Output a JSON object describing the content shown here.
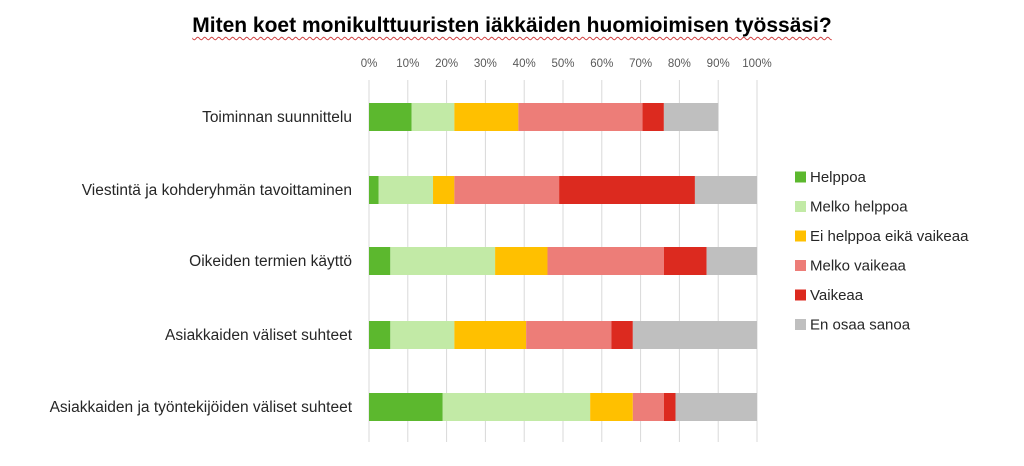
{
  "chart_data": {
    "type": "bar",
    "orientation": "horizontal",
    "stacked": "percent",
    "title": "Miten koet monikulttuuristen iäkkäiden huomioimisen työssäsi?",
    "categories": [
      "Toiminnan suunnittelu",
      "Viestintä ja kohderyhmän tavoittaminen",
      "Oikeiden termien käyttö",
      "Asiakkaiden väliset suhteet",
      "Asiakkaiden ja työntekijöiden väliset suhteet"
    ],
    "series": [
      {
        "name": "Helppoa",
        "color": "#5cb82e",
        "values": [
          11,
          2.5,
          5.5,
          5.5,
          19
        ]
      },
      {
        "name": "Melko helppoa",
        "color": "#c2eaa6",
        "values": [
          11,
          14,
          27,
          16.5,
          38
        ]
      },
      {
        "name": "Ei helppoa eikä vaikeaa",
        "color": "#ffc000",
        "values": [
          16.5,
          5.5,
          13.5,
          18.5,
          11
        ]
      },
      {
        "name": "Melko vaikeaa",
        "color": "#ed7d78",
        "values": [
          32,
          27,
          30,
          22,
          8
        ]
      },
      {
        "name": "Vaikeaa",
        "color": "#dc2a1f",
        "values": [
          5.5,
          35,
          11,
          5.5,
          3
        ]
      },
      {
        "name": "En osaa sanoa",
        "color": "#bfbfbf",
        "values": [
          14,
          16,
          13,
          32,
          21
        ]
      }
    ],
    "xaxis": {
      "ticks": [
        "0%",
        "10%",
        "20%",
        "30%",
        "40%",
        "50%",
        "60%",
        "70%",
        "80%",
        "90%",
        "100%"
      ],
      "range": [
        0,
        100
      ],
      "position": "top"
    },
    "grid": true,
    "legend_position": "right"
  }
}
